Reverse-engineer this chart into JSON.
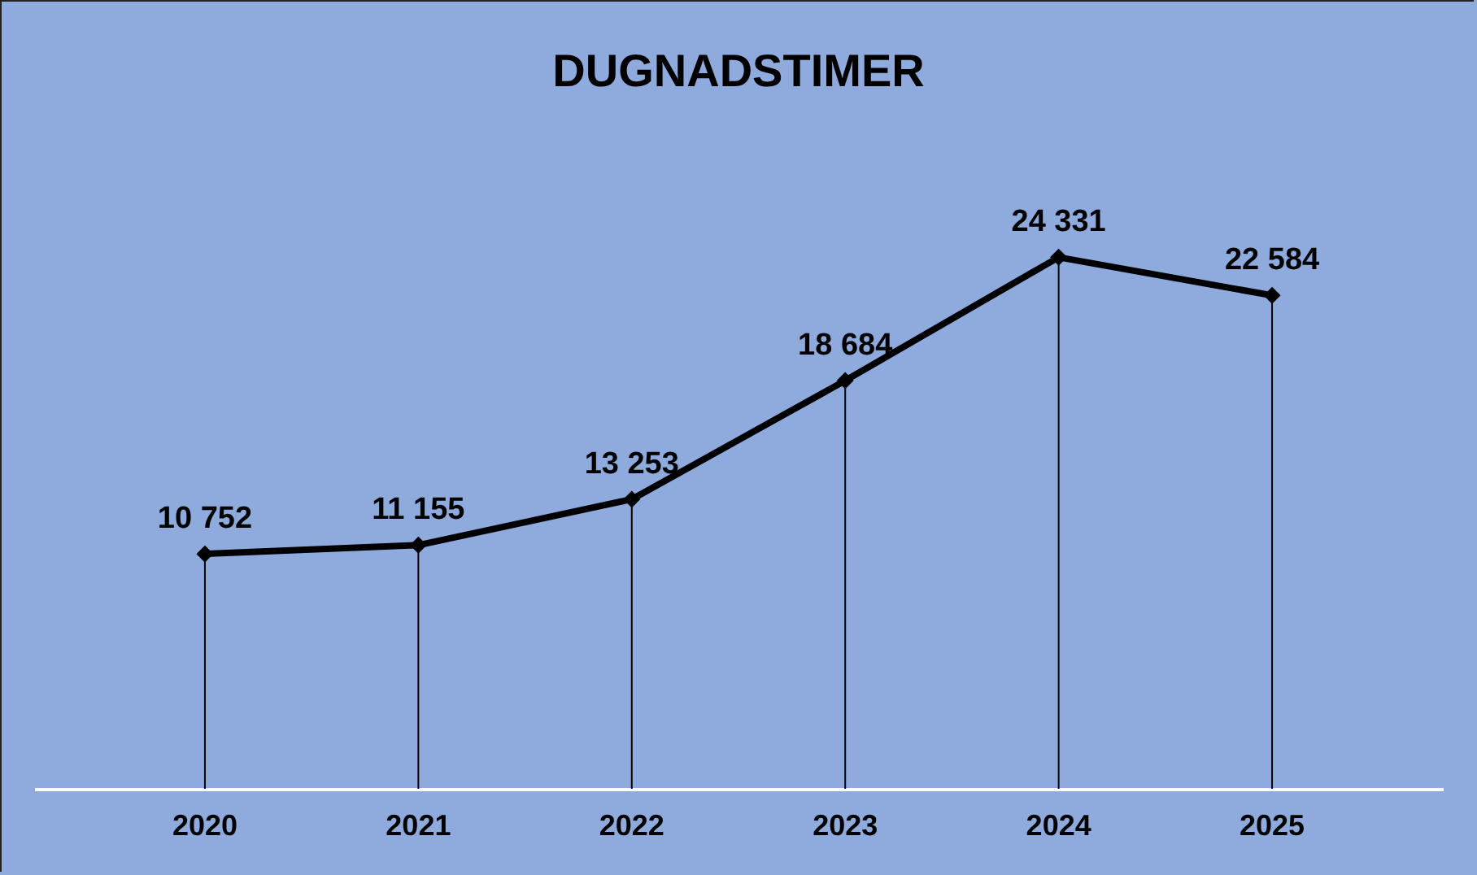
{
  "chart_data": {
    "type": "line",
    "title": "DUGNADSTIMER",
    "categories": [
      "2020",
      "2021",
      "2022",
      "2023",
      "2024",
      "2025"
    ],
    "series": [
      {
        "color": "#000000",
        "values": [
          10752,
          11155,
          13253,
          18684,
          24331,
          22584
        ],
        "value_labels": [
          "10 752",
          "11 155",
          "13 253",
          "18 684",
          "24 331",
          "22 584"
        ]
      }
    ],
    "tick_labels": "x",
    "grid": "x",
    "marker": "diamond",
    "line_style": "solid"
  }
}
